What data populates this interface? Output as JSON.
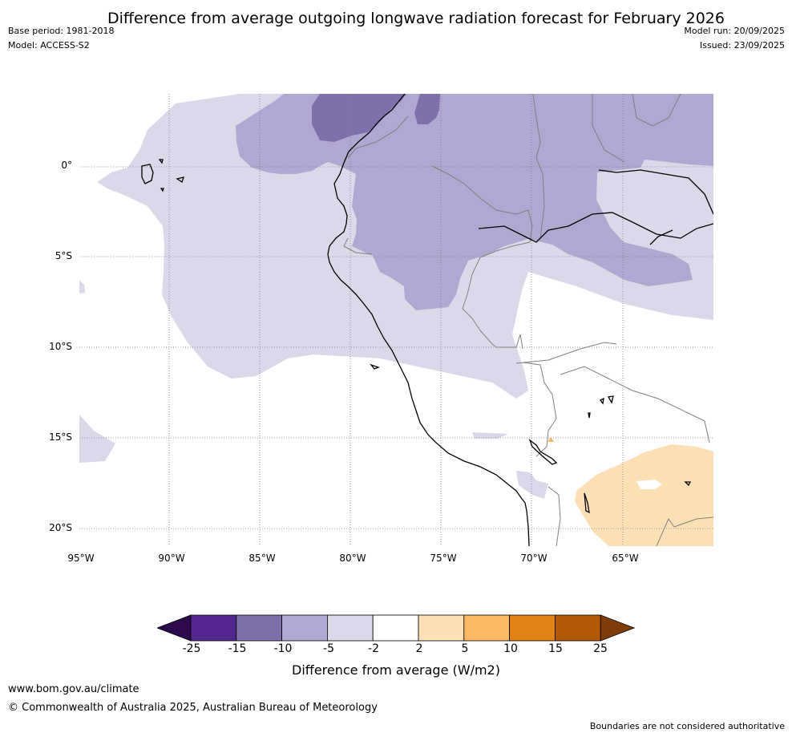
{
  "title": "Difference from average outgoing longwave radiation forecast for February 2026",
  "meta_left": {
    "base_period": "Base period: 1981-2018",
    "model": "Model: ACCESS-S2"
  },
  "meta_right": {
    "model_run": "Model run: 20/09/2025",
    "issued": "Issued: 23/09/2025"
  },
  "latitude_labels": [
    "0°",
    "5°S",
    "10°S",
    "15°S",
    "20°S"
  ],
  "longitude_labels": [
    "95°W",
    "90°W",
    "85°W",
    "80°W",
    "75°W",
    "70°W",
    "65°W"
  ],
  "legend": {
    "ticks": [
      "-25",
      "-15",
      "-10",
      "-5",
      "-2",
      "2",
      "5",
      "10",
      "15",
      "25"
    ],
    "colors": [
      "#2d0a4e",
      "#54278f",
      "#8070a9",
      "#b0a8d0",
      "#d9d9ea",
      "#ffffff",
      "#fee0b6",
      "#fdb863",
      "#e08214",
      "#b35806",
      "#7f3b08"
    ],
    "caption": "Difference from average (W/m2)"
  },
  "footer": {
    "website": "www.bom.gov.au/climate",
    "copyright": "© Commonwealth of Australia 2025, Australian Bureau of Meteorology",
    "disclaimer": "Boundaries are not considered authoritative"
  }
}
